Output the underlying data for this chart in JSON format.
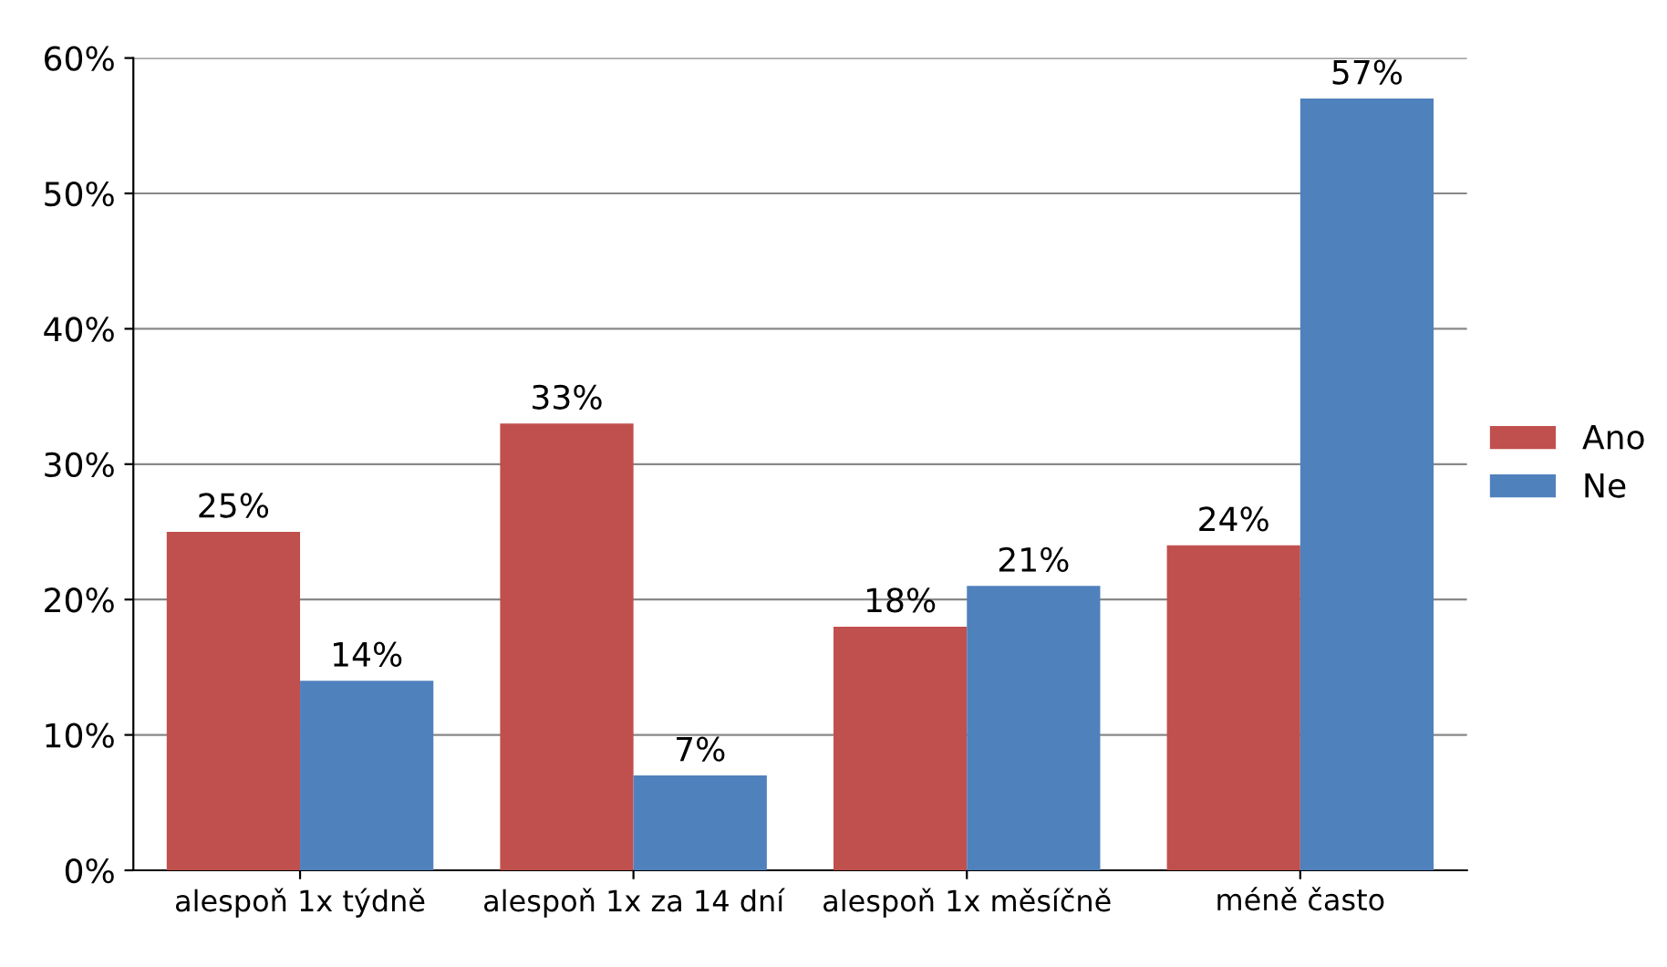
{
  "chart_data": {
    "type": "bar",
    "categories": [
      "alespoň 1x týdně",
      "alespoň 1x za 14 dní",
      "alespoň 1x měsíčně",
      "méně často"
    ],
    "series": [
      {
        "name": "Ano",
        "color": "#c0504d",
        "values": [
          25,
          33,
          18,
          24
        ],
        "value_labels": [
          "25%",
          "33%",
          "18%",
          "24%"
        ]
      },
      {
        "name": "Ne",
        "color": "#4f81bd",
        "values": [
          14,
          7,
          21,
          57
        ],
        "value_labels": [
          "14%",
          "7%",
          "21%",
          "57%"
        ]
      }
    ],
    "ylim": [
      0,
      60
    ],
    "yticks": [
      {
        "value": 0,
        "label": "0%"
      },
      {
        "value": 10,
        "label": "10%"
      },
      {
        "value": 20,
        "label": "20%"
      },
      {
        "value": 30,
        "label": "30%"
      },
      {
        "value": 40,
        "label": "40%"
      },
      {
        "value": 50,
        "label": "50%"
      },
      {
        "value": 60,
        "label": "60%"
      }
    ],
    "grid": "y",
    "legend": "right"
  }
}
